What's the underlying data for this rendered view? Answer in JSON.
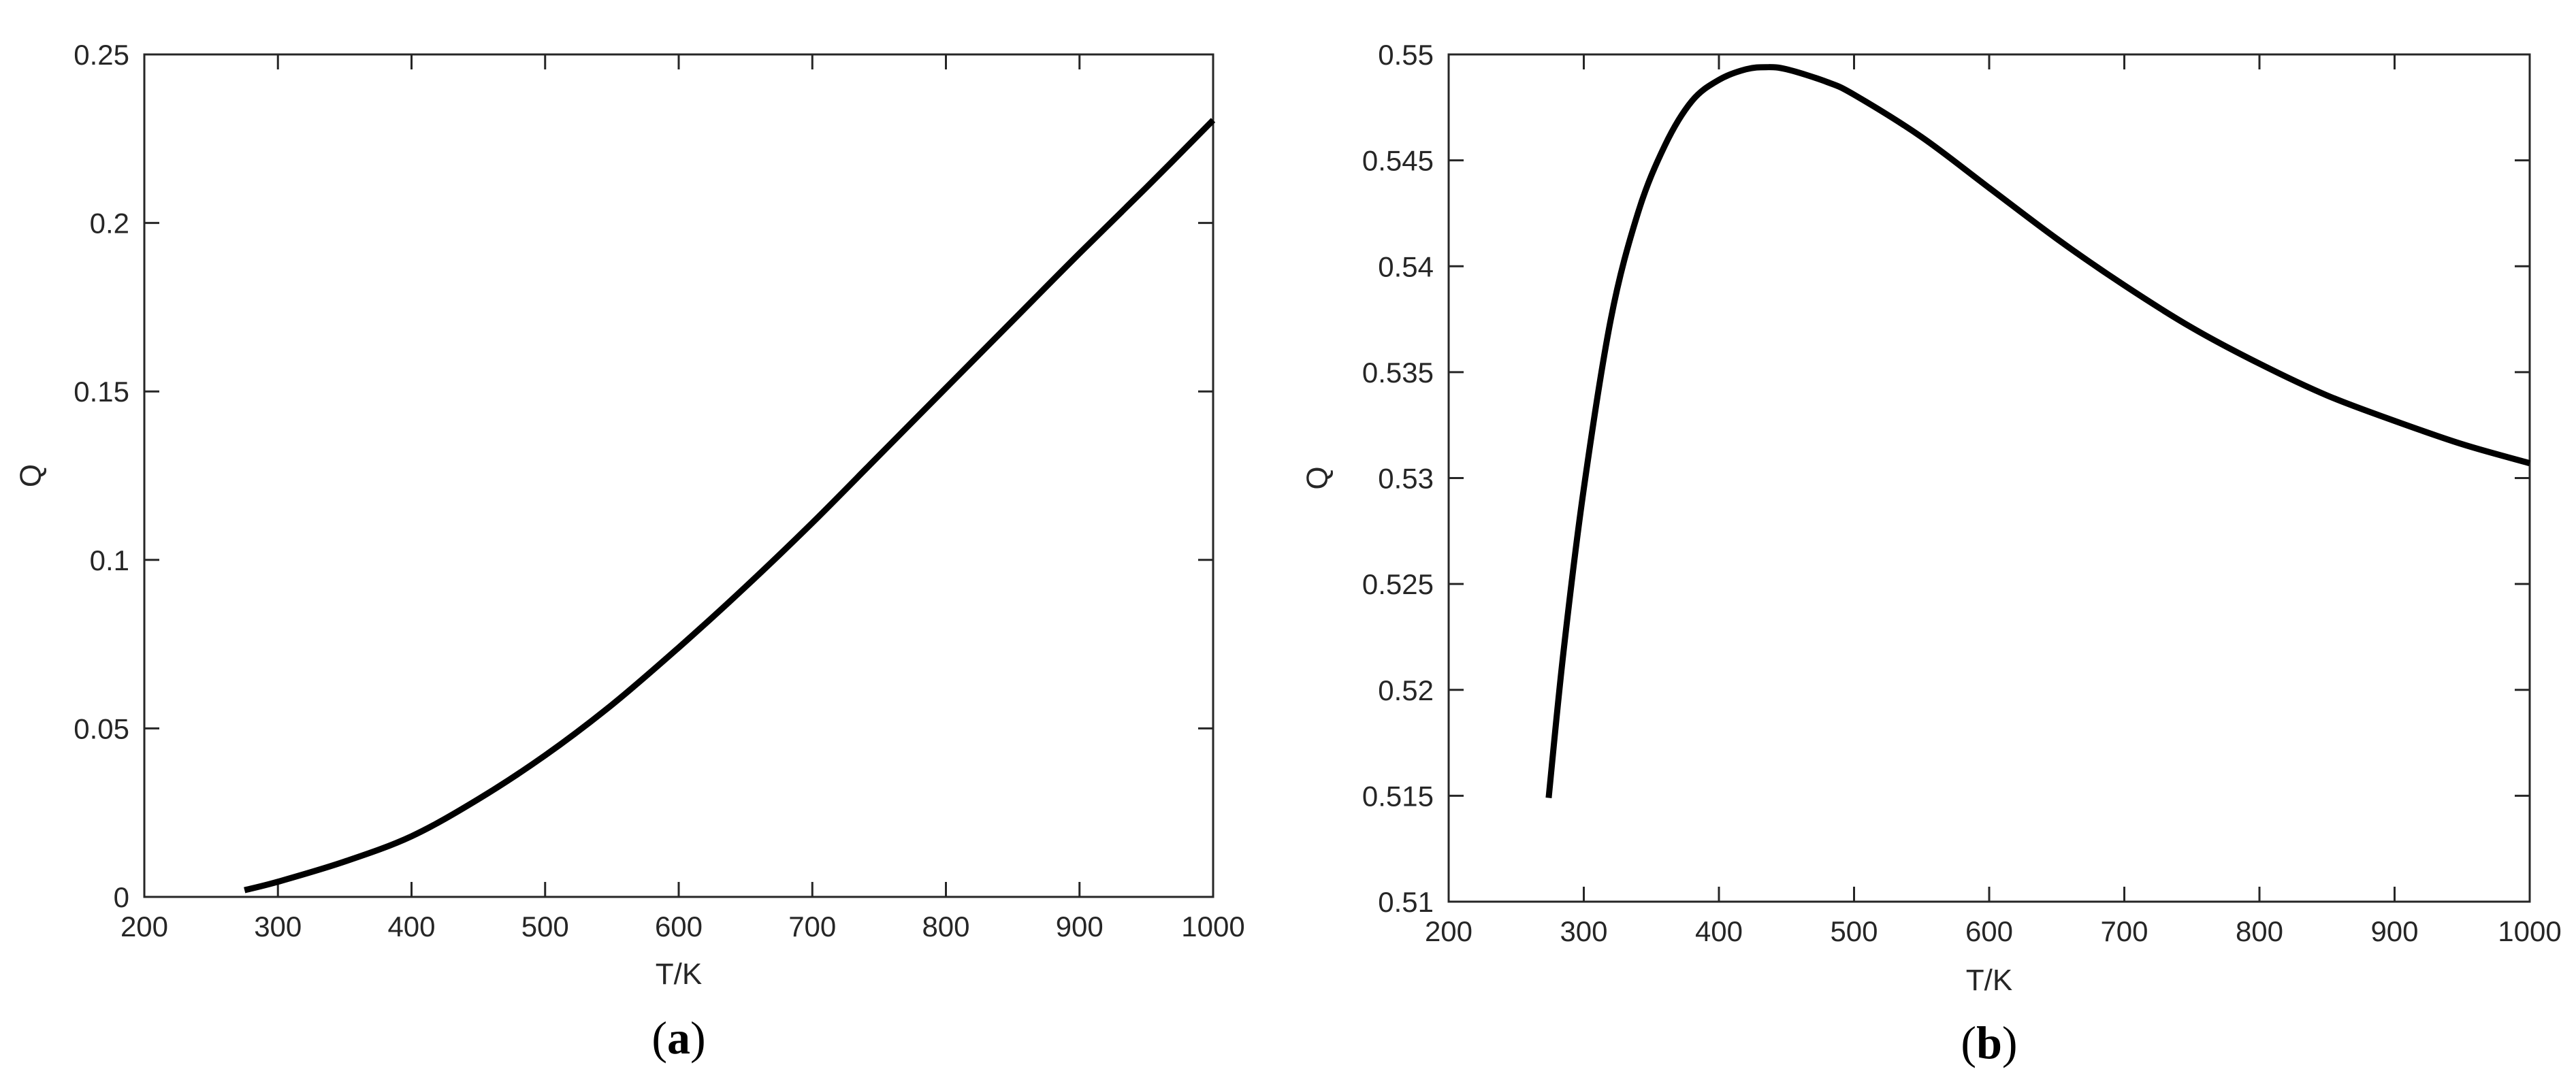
{
  "chart_data": [
    {
      "type": "line",
      "panel_label": "(a)",
      "xlabel": "T/K",
      "ylabel": "Q",
      "xlim": [
        200,
        1000
      ],
      "ylim": [
        0,
        0.25
      ],
      "xticks": [
        200,
        300,
        400,
        500,
        600,
        700,
        800,
        900,
        1000
      ],
      "yticks": [
        0,
        0.05,
        0.1,
        0.15,
        0.2,
        0.25
      ],
      "xtick_labels": [
        "200",
        "300",
        "400",
        "500",
        "600",
        "700",
        "800",
        "900",
        "1000"
      ],
      "ytick_labels": [
        "0",
        "0.05",
        "0.1",
        "0.15",
        "0.2",
        "0.25"
      ],
      "grid": false,
      "color": "#000000",
      "series": [
        {
          "x": [
            275,
            300,
            350,
            400,
            450,
            500,
            550,
            600,
            650,
            700,
            750,
            800,
            850,
            900,
            950,
            1000
          ],
          "y": [
            0.002,
            0.0045,
            0.0105,
            0.018,
            0.029,
            0.042,
            0.057,
            0.074,
            0.092,
            0.111,
            0.131,
            0.151,
            0.171,
            0.191,
            0.2105,
            0.2305
          ]
        }
      ]
    },
    {
      "type": "line",
      "panel_label": "(b)",
      "xlabel": "T/K",
      "ylabel": "Q",
      "xlim": [
        200,
        1000
      ],
      "ylim": [
        0.51,
        0.55
      ],
      "xticks": [
        200,
        300,
        400,
        500,
        600,
        700,
        800,
        900,
        1000
      ],
      "yticks": [
        0.51,
        0.515,
        0.52,
        0.525,
        0.53,
        0.535,
        0.54,
        0.545,
        0.55
      ],
      "xtick_labels": [
        "200",
        "300",
        "400",
        "500",
        "600",
        "700",
        "800",
        "900",
        "1000"
      ],
      "ytick_labels": [
        "0.51",
        "0.515",
        "0.52",
        "0.525",
        "0.53",
        "0.535",
        "0.54",
        "0.545",
        "0.55"
      ],
      "grid": false,
      "color": "#000000",
      "series": [
        {
          "x": [
            274,
            285,
            300,
            320,
            340,
            360,
            380,
            400,
            420,
            435,
            450,
            480,
            500,
            550,
            600,
            650,
            700,
            750,
            800,
            850,
            900,
            950,
            1000
          ],
          "y": [
            0.5149,
            0.5218,
            0.5295,
            0.5375,
            0.5425,
            0.5457,
            0.5478,
            0.5488,
            0.5493,
            0.5494,
            0.5493,
            0.5487,
            0.5481,
            0.5461,
            0.5437,
            0.5413,
            0.5391,
            0.5371,
            0.5354,
            0.5339,
            0.5327,
            0.5316,
            0.5307
          ]
        }
      ]
    }
  ]
}
